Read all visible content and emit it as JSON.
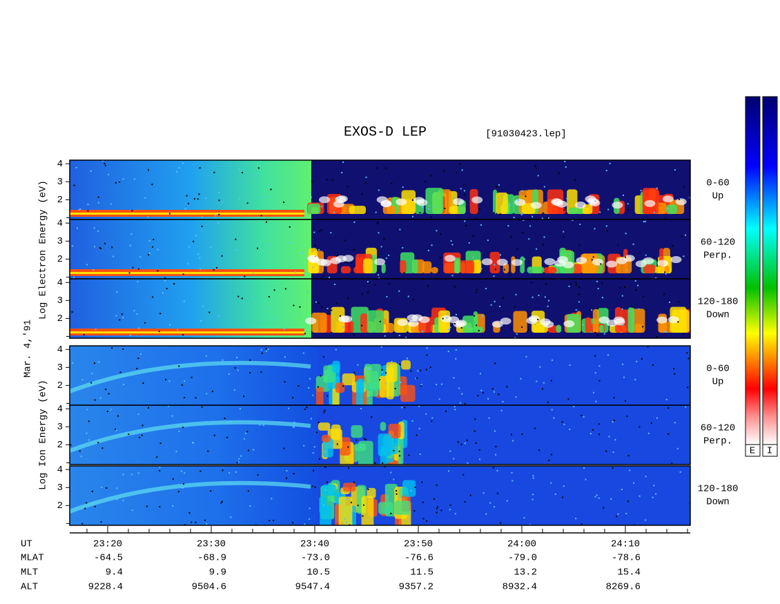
{
  "title": "EXOS-D LEP",
  "file": "[91030423.lep]",
  "date": "Mar. 4,'91",
  "electron_label": "Log  Electron  Energy (eV)",
  "ion_label": "Log  Ion  Energy (eV)",
  "panels": [
    {
      "label": "0-60",
      "direction": "Up"
    },
    {
      "label": "60-120",
      "direction": "Perp."
    },
    {
      "label": "120-180",
      "direction": "Down"
    },
    {
      "label": "0-60",
      "direction": "Up"
    },
    {
      "label": "60-120",
      "direction": "Perp."
    },
    {
      "label": "120-180",
      "direction": "Down"
    }
  ],
  "energy_axis": {
    "ylim": [
      0.9,
      4.2
    ],
    "yticks": [
      2,
      3,
      4
    ]
  },
  "orbit": {
    "row_labels": [
      "UT",
      "MLAT",
      "MLT",
      "ALT"
    ],
    "columns": [
      [
        "23:20",
        "-64.5",
        "9.4",
        "9228.4"
      ],
      [
        "23:30",
        "-68.9",
        "9.9",
        "9504.6"
      ],
      [
        "23:40",
        "-73.0",
        "10.5",
        "9547.4"
      ],
      [
        "23:50",
        "-76.6",
        "11.5",
        "9357.2"
      ],
      [
        "24:00",
        "-79.0",
        "13.2",
        "8932.4"
      ],
      [
        "24:10",
        "-78.6",
        "15.4",
        "8269.6"
      ]
    ]
  },
  "colorbar_labels": [
    "E",
    "I"
  ]
}
